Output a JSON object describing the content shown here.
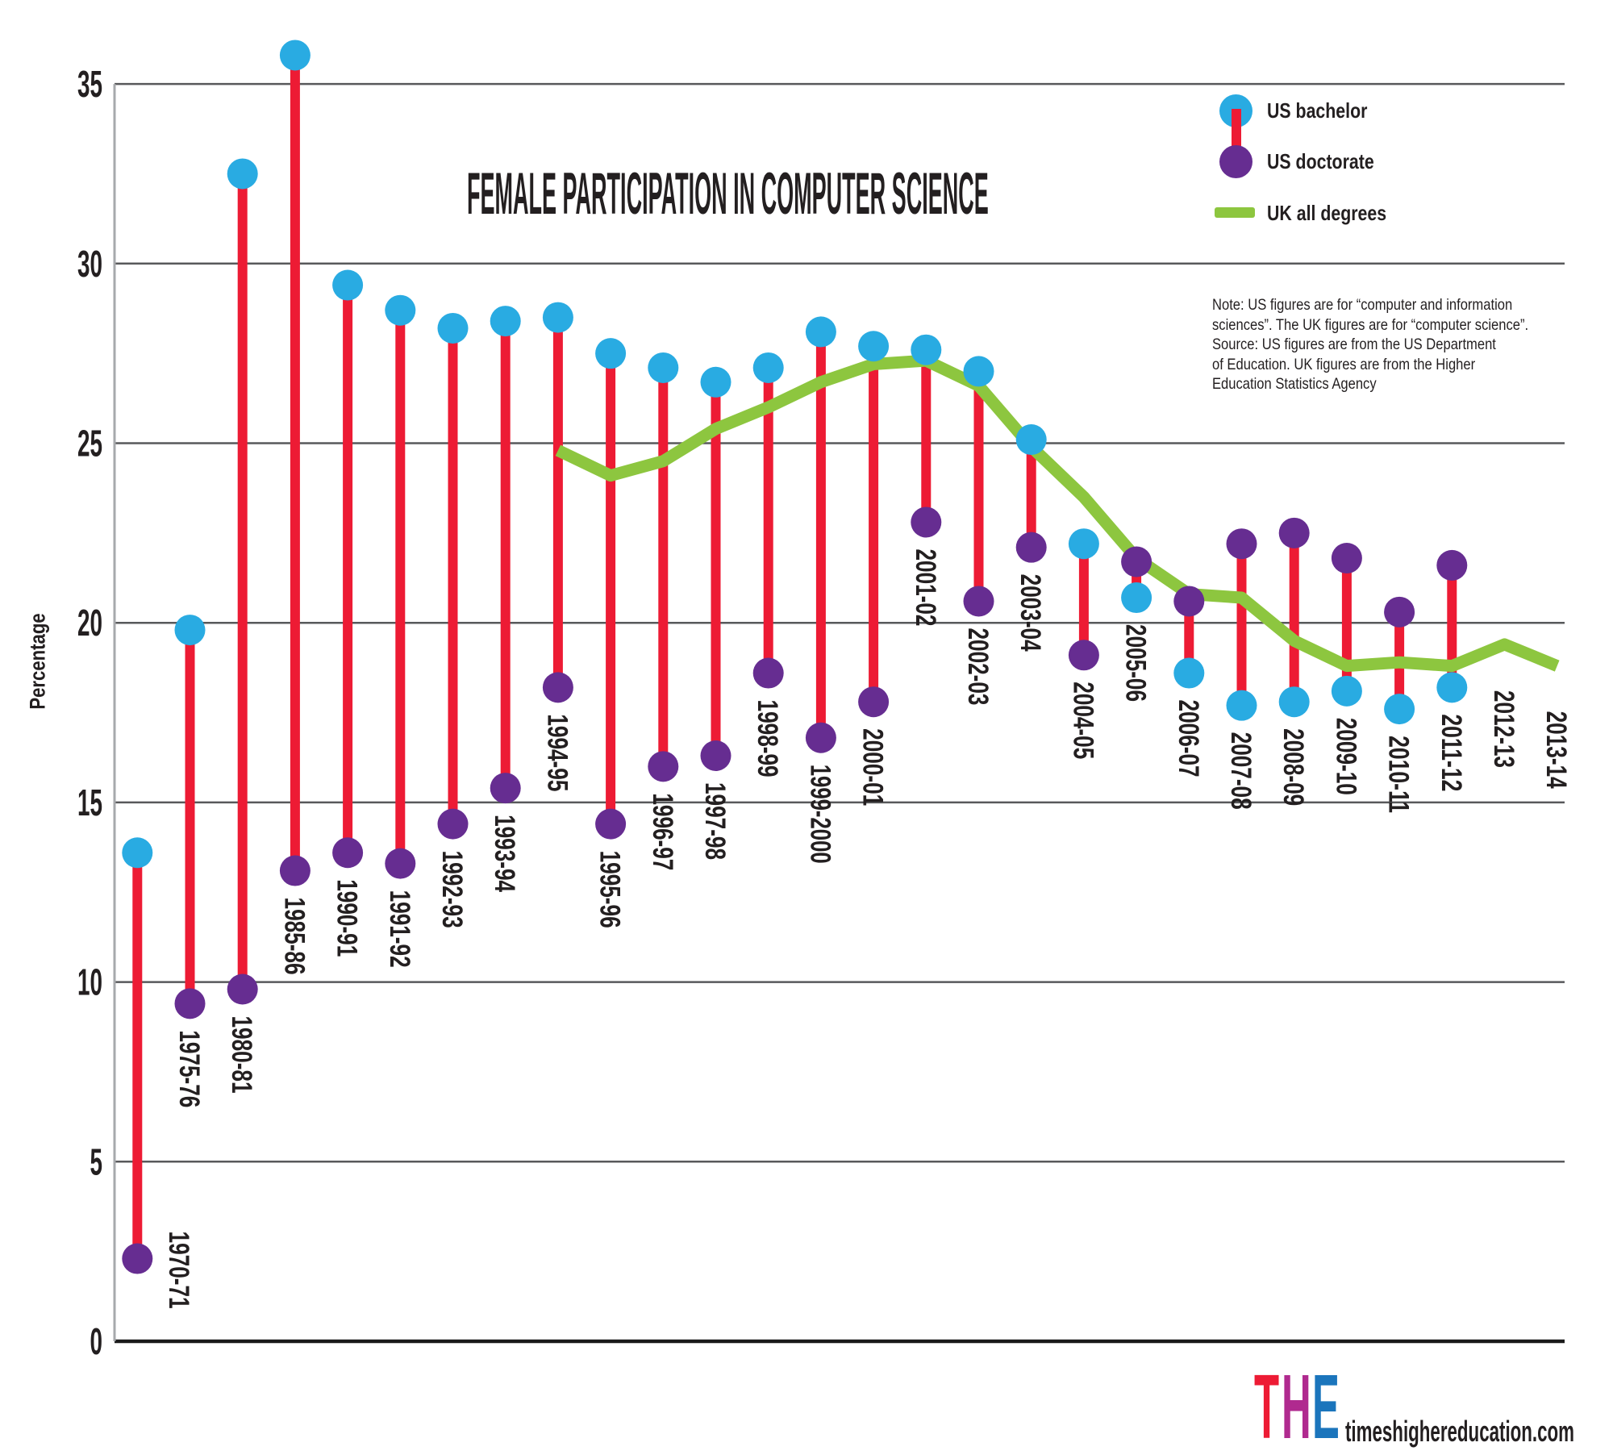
{
  "chart_title": "FEMALE PARTICIPATION IN COMPUTER SCIENCE",
  "note_text": "Note: US figures are for “computer and information\nsciences”. The UK figures are for “computer science”.\nSource: US figures are from the US Department\nof Education. UK figures are from the Higher\nEducation Statistics Agency",
  "legend": {
    "items": [
      {
        "label": "US bachelor",
        "symbol": "blue-dot",
        "color": "#29ABE2"
      },
      {
        "label": "US doctorate",
        "symbol": "purple-dot",
        "color": "#662D91"
      },
      {
        "label": "UK all degrees",
        "symbol": "green-line",
        "color": "#8DC63F"
      }
    ]
  },
  "footer": {
    "logo_letters": [
      {
        "char": "T",
        "color": "#ED1B34"
      },
      {
        "char": "H",
        "color": "#B02A8F"
      },
      {
        "char": "E",
        "color": "#1B75BC"
      }
    ],
    "site": "timeshighereducation.com"
  },
  "colors": {
    "bachelor": "#29ABE2",
    "doctorate": "#662D91",
    "uk_line": "#8DC63F",
    "stem": "#ED1B34",
    "gridline": "#58595B",
    "axis_bottom": "#1A1A1A",
    "axis_left": "#A7A9AC",
    "text": "#231F20"
  },
  "chart_data": {
    "type": "lollipop+line",
    "title": "FEMALE PARTICIPATION IN COMPUTER SCIENCE",
    "xlabel": "",
    "ylabel": "Percentage",
    "ylim": [
      0,
      35
    ],
    "yticks": [
      0,
      5,
      10,
      15,
      20,
      25,
      30,
      35
    ],
    "grid": true,
    "legend_position": "top-right",
    "categories": [
      "1970-71",
      "1975-76",
      "1980-81",
      "1985-86",
      "1990-91",
      "1991-92",
      "1992-93",
      "1993-94",
      "1994-95",
      "1995-96",
      "1996-97",
      "1997-98",
      "1998-99",
      "1999-2000",
      "2000-01",
      "2001-02",
      "2002-03",
      "2003-04",
      "2004-05",
      "2005-06",
      "2006-07",
      "2007-08",
      "2008-09",
      "2009-10",
      "2010-11",
      "2011-12",
      "2012-13",
      "2013-14"
    ],
    "series": [
      {
        "name": "US bachelor",
        "type": "point",
        "color": "#29ABE2",
        "values": [
          13.6,
          19.8,
          32.5,
          35.8,
          29.4,
          28.7,
          28.2,
          28.4,
          28.5,
          27.5,
          27.1,
          26.7,
          27.1,
          28.1,
          27.7,
          27.6,
          27.0,
          25.1,
          22.2,
          20.7,
          18.6,
          17.7,
          17.8,
          18.1,
          17.6,
          18.2,
          null,
          null
        ]
      },
      {
        "name": "US doctorate",
        "type": "point",
        "color": "#662D91",
        "values": [
          2.3,
          9.4,
          9.8,
          13.1,
          13.6,
          13.3,
          14.4,
          15.4,
          18.2,
          14.4,
          16.0,
          16.3,
          18.6,
          16.8,
          17.8,
          22.8,
          20.6,
          22.1,
          19.1,
          21.7,
          20.6,
          22.2,
          22.5,
          21.8,
          20.3,
          21.6,
          null,
          null
        ]
      },
      {
        "name": "UK all degrees",
        "type": "line",
        "color": "#8DC63F",
        "values": [
          null,
          null,
          null,
          null,
          null,
          null,
          null,
          null,
          24.8,
          24.1,
          24.5,
          25.4,
          26.0,
          26.7,
          27.2,
          27.3,
          26.6,
          24.9,
          23.5,
          21.8,
          20.8,
          20.7,
          19.5,
          18.8,
          18.9,
          18.8,
          19.4,
          18.8
        ]
      }
    ],
    "label_overrides": {
      "0": {
        "dx": 52,
        "dy": -67
      },
      "26": {
        "dy": 24
      },
      "27": {
        "dy": 23
      }
    }
  }
}
